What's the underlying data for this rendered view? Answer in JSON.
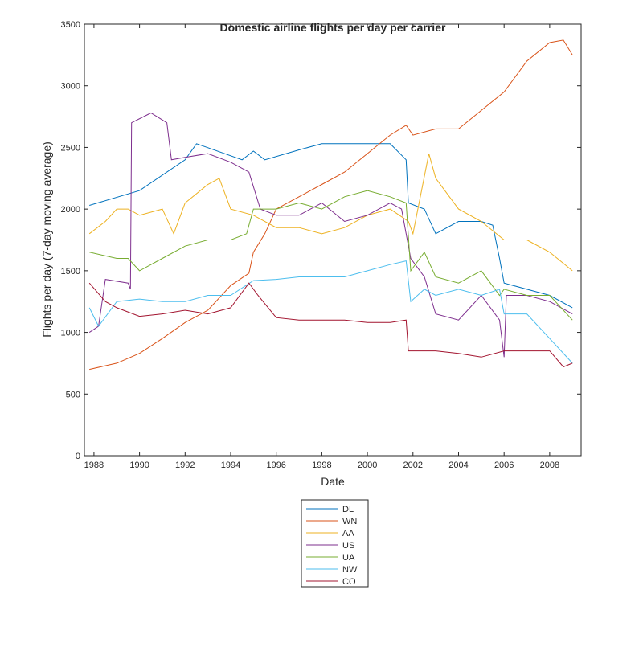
{
  "chart_data": {
    "type": "line",
    "title": "Domestic airline flights per day per carrier",
    "xlabel": "Date",
    "ylabel": "Flights per day (7-day moving average)",
    "xlim": [
      1987.58,
      2009.38
    ],
    "ylim": [
      0,
      3500
    ],
    "xticks": [
      1988,
      1990,
      1992,
      1994,
      1996,
      1998,
      2000,
      2002,
      2004,
      2006,
      2008
    ],
    "xtick_labels": [
      "1988",
      "1990",
      "1992",
      "1994",
      "1996",
      "1998",
      "2000",
      "2002",
      "2004",
      "2006",
      "2008"
    ],
    "yticks": [
      0,
      500,
      1000,
      1500,
      2000,
      2500,
      3000,
      3500
    ],
    "ytick_labels": [
      "0",
      "500",
      "1000",
      "1500",
      "2000",
      "2500",
      "3000",
      "3500"
    ],
    "grid": false,
    "legend_position": "bottom-outside",
    "series": [
      {
        "name": "DL",
        "color": "#0072BD",
        "x": [
          1987.8,
          1990,
          1992,
          1992.5,
          1994.5,
          1995,
          1995.5,
          1997,
          1998,
          2001,
          2001.7,
          2001.8,
          2002.5,
          2003,
          2004,
          2005,
          2005.5,
          2005.8,
          2006,
          2007,
          2008,
          2009
        ],
        "y": [
          2030,
          2150,
          2400,
          2530,
          2400,
          2470,
          2400,
          2480,
          2530,
          2530,
          2400,
          2050,
          2000,
          1800,
          1900,
          1900,
          1870,
          1600,
          1400,
          1350,
          1300,
          1200
        ]
      },
      {
        "name": "WN",
        "color": "#D95319",
        "x": [
          1987.8,
          1989,
          1990,
          1991,
          1992,
          1993,
          1994,
          1994.8,
          1995,
          1995.5,
          1996,
          1997,
          1998,
          1999,
          2000,
          2001,
          2001.7,
          2002,
          2003,
          2004,
          2005,
          2006,
          2007,
          2008,
          2008.6,
          2009
        ],
        "y": [
          700,
          750,
          830,
          950,
          1080,
          1180,
          1380,
          1480,
          1650,
          1800,
          2000,
          2100,
          2200,
          2300,
          2450,
          2600,
          2680,
          2600,
          2650,
          2650,
          2800,
          2950,
          3200,
          3350,
          3370,
          3250
        ]
      },
      {
        "name": "AA",
        "color": "#EDB120",
        "x": [
          1987.8,
          1988.5,
          1989,
          1989.5,
          1990,
          1991,
          1991.5,
          1992,
          1993,
          1993.5,
          1994,
          1995,
          1996,
          1997,
          1998,
          1999,
          2000,
          2001,
          2001.8,
          2002,
          2002.7,
          2003,
          2004,
          2005,
          2006,
          2007,
          2008,
          2009
        ],
        "y": [
          1800,
          1900,
          2000,
          2000,
          1950,
          2000,
          1800,
          2050,
          2200,
          2250,
          2000,
          1950,
          1850,
          1850,
          1800,
          1850,
          1950,
          2000,
          1900,
          1800,
          2450,
          2250,
          2000,
          1900,
          1750,
          1750,
          1650,
          1500
        ]
      },
      {
        "name": "US",
        "color": "#7E2F8E",
        "x": [
          1987.8,
          1988.2,
          1988.5,
          1989.5,
          1989.6,
          1989.65,
          1990.5,
          1991.2,
          1991.4,
          1992,
          1993,
          1994,
          1994.8,
          1995.3,
          1996,
          1997,
          1998,
          1999,
          2000,
          2001,
          2001.5,
          2001.9,
          2002.5,
          2003,
          2004,
          2005,
          2005.8,
          2006,
          2006.1,
          2007,
          2008,
          2009
        ],
        "y": [
          1000,
          1050,
          1430,
          1400,
          1350,
          2700,
          2780,
          2700,
          2400,
          2420,
          2450,
          2380,
          2300,
          2000,
          1950,
          1950,
          2050,
          1900,
          1950,
          2050,
          2000,
          1600,
          1450,
          1150,
          1100,
          1300,
          1100,
          800,
          1300,
          1300,
          1250,
          1150
        ]
      },
      {
        "name": "UA",
        "color": "#77AC30",
        "x": [
          1987.8,
          1989,
          1989.5,
          1990,
          1991,
          1992,
          1993,
          1994,
          1994.7,
          1995,
          1996,
          1997,
          1998,
          1999,
          2000,
          2001,
          2001.7,
          2001.9,
          2002.5,
          2003,
          2004,
          2005,
          2005.8,
          2006,
          2007,
          2008,
          2009
        ],
        "y": [
          1650,
          1600,
          1600,
          1500,
          1600,
          1700,
          1750,
          1750,
          1800,
          2000,
          2000,
          2050,
          2000,
          2100,
          2150,
          2100,
          2050,
          1500,
          1650,
          1450,
          1400,
          1500,
          1300,
          1350,
          1300,
          1300,
          1100
        ]
      },
      {
        "name": "NW",
        "color": "#4DBEEE",
        "x": [
          1987.8,
          1988.2,
          1989,
          1990,
          1991,
          1992,
          1993,
          1994,
          1995,
          1996,
          1997,
          1998,
          1999,
          2000,
          2001,
          2001.7,
          2001.9,
          2002.5,
          2003,
          2004,
          2005,
          2005.8,
          2006,
          2007,
          2008,
          2009
        ],
        "y": [
          1200,
          1050,
          1250,
          1270,
          1250,
          1250,
          1300,
          1300,
          1420,
          1430,
          1450,
          1450,
          1450,
          1500,
          1550,
          1580,
          1250,
          1350,
          1300,
          1350,
          1300,
          1350,
          1150,
          1150,
          950,
          750
        ]
      },
      {
        "name": "CO",
        "color": "#A2142F",
        "x": [
          1987.8,
          1988.5,
          1989,
          1990,
          1991,
          1992,
          1993,
          1994,
          1994.8,
          1995.2,
          1996,
          1997,
          1998,
          1999,
          2000,
          2001,
          2001.7,
          2001.8,
          2003,
          2004,
          2005,
          2006,
          2007,
          2008,
          2008.6,
          2009
        ],
        "y": [
          1400,
          1250,
          1200,
          1130,
          1150,
          1180,
          1150,
          1200,
          1400,
          1300,
          1120,
          1100,
          1100,
          1100,
          1080,
          1080,
          1100,
          850,
          850,
          830,
          800,
          850,
          850,
          850,
          720,
          750
        ]
      }
    ]
  }
}
